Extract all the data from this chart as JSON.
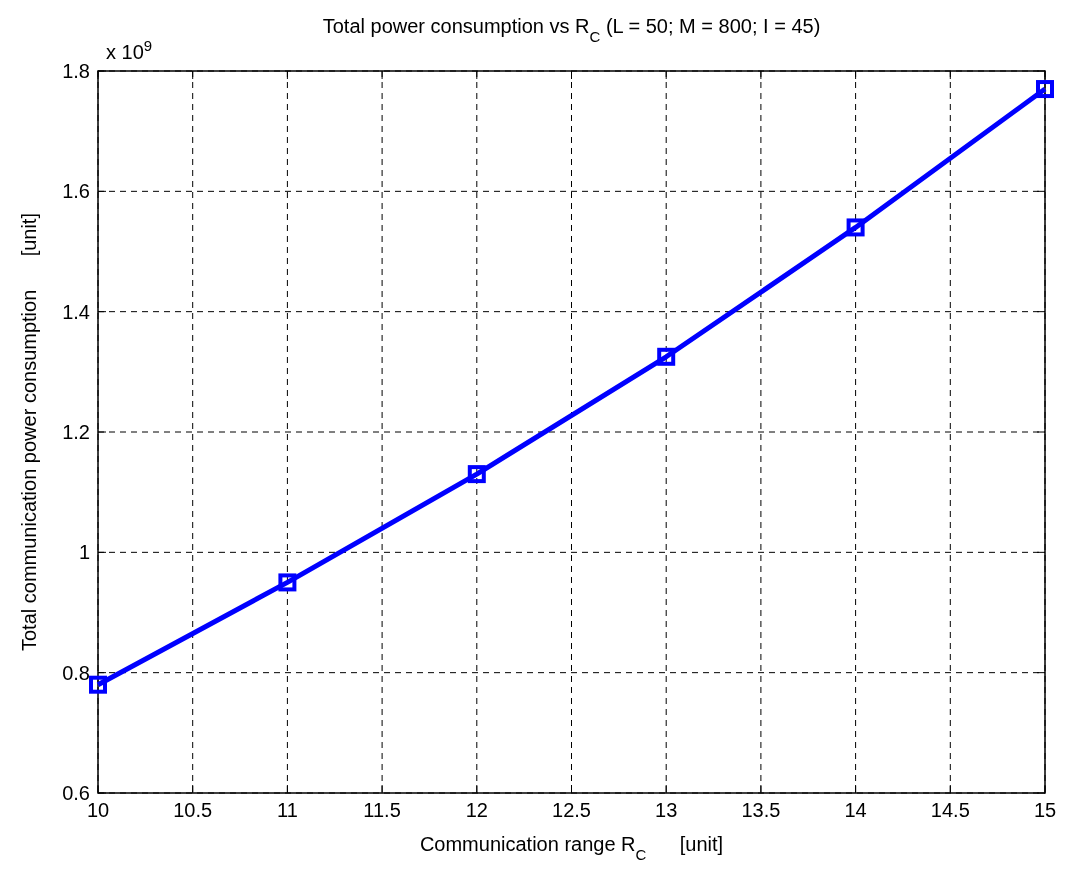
{
  "chart_data": {
    "type": "line",
    "title": "Total power consumption vs R$_{C}$ (L = 50; M = 800; I = 45)",
    "xlabel": "Communication range R$_{C}$      [unit]",
    "ylabel": "Total communication power consumption      [unit]",
    "annotations": [
      "x 10$^{9}$"
    ],
    "x": [
      10,
      11,
      12,
      13,
      14,
      15
    ],
    "series": [
      {
        "color": "#0000ff",
        "values": [
          0.78,
          0.95,
          1.13,
          1.325,
          1.54,
          1.77
        ]
      }
    ],
    "xlim": [
      10,
      15
    ],
    "xticks": [
      10,
      10.5,
      11,
      11.5,
      12,
      12.5,
      13,
      13.5,
      14,
      14.5,
      15
    ],
    "ylim": [
      0.6,
      1.8
    ],
    "yticks": [
      0.6,
      0.8,
      1,
      1.2,
      1.4,
      1.6,
      1.8
    ],
    "grid": true,
    "marker": "square",
    "line_style": "solid"
  }
}
